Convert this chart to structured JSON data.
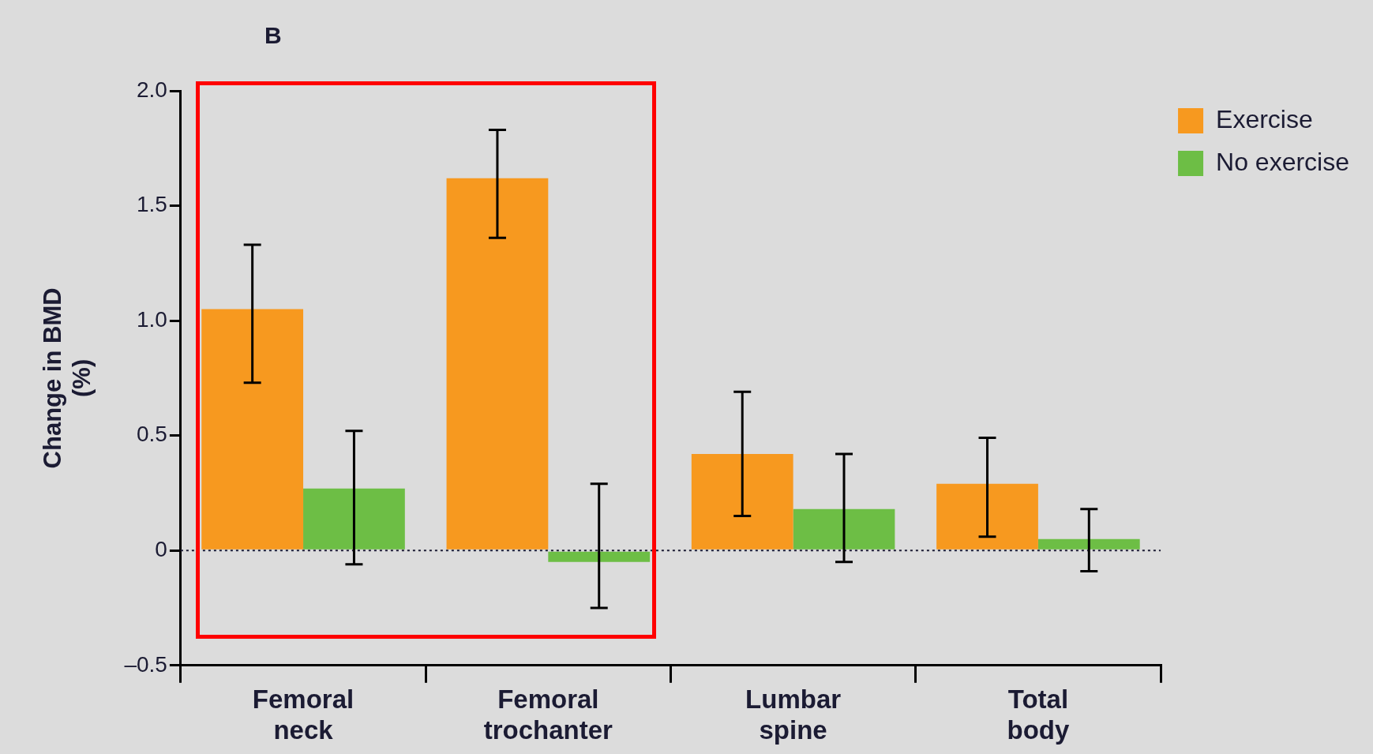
{
  "chart_data": {
    "type": "bar",
    "ylabel": "Change in BMD\n(%)",
    "annotations": [
      "B"
    ],
    "categories": [
      "Femoral neck",
      "Femoral trochanter",
      "Lumbar spine",
      "Total body"
    ],
    "series": [
      {
        "name": "Exercise",
        "color": "#f7991f",
        "values": [
          1.05,
          1.62,
          0.42,
          0.29
        ],
        "errors": [
          [
            0.73,
            1.33
          ],
          [
            1.36,
            1.83
          ],
          [
            0.15,
            0.69
          ],
          [
            0.06,
            0.49
          ]
        ]
      },
      {
        "name": "No exercise",
        "color": "#6dbe45",
        "values": [
          0.27,
          -0.05,
          0.18,
          0.05
        ],
        "errors": [
          [
            -0.06,
            0.52
          ],
          [
            -0.25,
            0.29
          ],
          [
            -0.05,
            0.42
          ],
          [
            -0.09,
            0.18
          ]
        ]
      }
    ],
    "ylim": [
      -0.5,
      2.0
    ],
    "yticks": [
      {
        "value": -0.5,
        "label": "–0.5"
      },
      0,
      0.5,
      {
        "value": 1.0,
        "label": "1.0"
      },
      1.5,
      {
        "value": 2.0,
        "label": "2.0"
      }
    ],
    "ref_lines": [
      {
        "axis": "y",
        "value": 0,
        "line_style": "dotted"
      }
    ],
    "grid": false,
    "legend": "top right"
  }
}
